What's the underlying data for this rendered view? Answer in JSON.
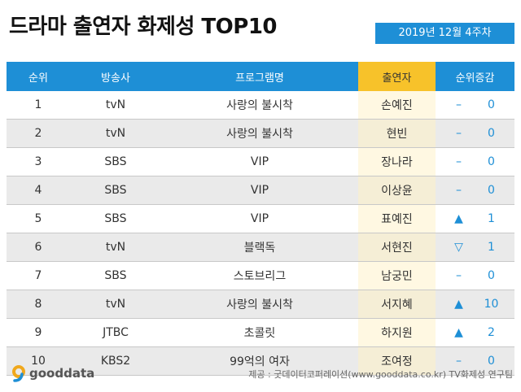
{
  "title": "드라마 출연자 화제성 TOP10",
  "date": "2019년 12월 4주차",
  "table": {
    "headers": [
      "순위",
      "방송사",
      "프로그램명",
      "출연자",
      "순위증감"
    ],
    "rows": [
      {
        "rank": "1",
        "network": "tvN",
        "program": "사랑의 불시착",
        "cast": "손예진",
        "arrow": "–",
        "change": "0"
      },
      {
        "rank": "2",
        "network": "tvN",
        "program": "사랑의 불시착",
        "cast": "현빈",
        "arrow": "–",
        "change": "0"
      },
      {
        "rank": "3",
        "network": "SBS",
        "program": "VIP",
        "cast": "장나라",
        "arrow": "–",
        "change": "0"
      },
      {
        "rank": "4",
        "network": "SBS",
        "program": "VIP",
        "cast": "이상윤",
        "arrow": "–",
        "change": "0"
      },
      {
        "rank": "5",
        "network": "SBS",
        "program": "VIP",
        "cast": "표예진",
        "arrow": "▲",
        "change": "1"
      },
      {
        "rank": "6",
        "network": "tvN",
        "program": "블랙독",
        "cast": "서현진",
        "arrow": "▽",
        "change": "1"
      },
      {
        "rank": "7",
        "network": "SBS",
        "program": "스토브리그",
        "cast": "남궁민",
        "arrow": "–",
        "change": "0"
      },
      {
        "rank": "8",
        "network": "tvN",
        "program": "사랑의 불시착",
        "cast": "서지혜",
        "arrow": "▲",
        "change": "10"
      },
      {
        "rank": "9",
        "network": "JTBC",
        "program": "초콜릿",
        "cast": "하지원",
        "arrow": "▲",
        "change": "2"
      },
      {
        "rank": "10",
        "network": "KBS2",
        "program": "99억의 여자",
        "cast": "조여정",
        "arrow": "–",
        "change": "0"
      }
    ]
  },
  "footer": {
    "logo_text": "gooddata",
    "source": "제공 : 굿데이터코퍼레이션(www.gooddata.co.kr) TV화제성 연구팀"
  },
  "colors": {
    "accent": "#1e8fd6",
    "highlight": "#f7c22a"
  }
}
